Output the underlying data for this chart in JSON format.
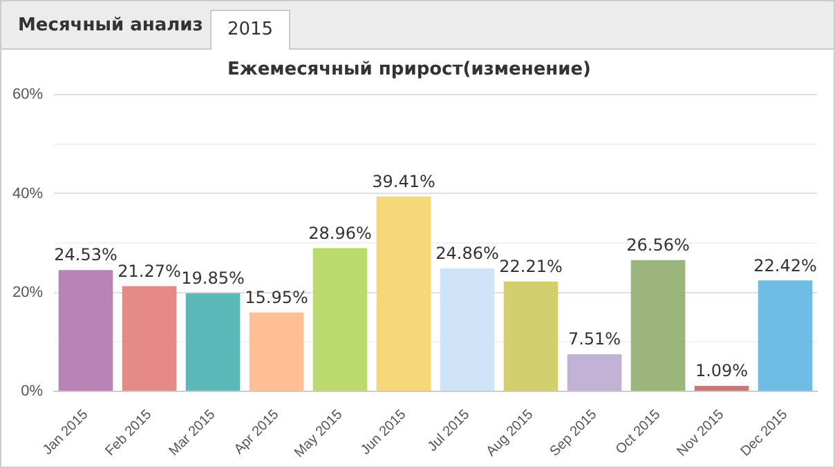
{
  "chart_data": {
    "type": "bar",
    "title": "Ежемесячный прирост(изменение)",
    "annotations": [
      "Месячный анализ",
      "2015"
    ],
    "categories": [
      "Jan 2015",
      "Feb 2015",
      "Mar 2015",
      "Apr 2015",
      "May 2015",
      "Jun 2015",
      "Jul 2015",
      "Aug 2015",
      "Sep 2015",
      "Oct 2015",
      "Nov 2015",
      "Dec 2015"
    ],
    "values": [
      24.53,
      21.27,
      19.85,
      15.95,
      28.96,
      39.41,
      24.86,
      22.21,
      7.51,
      26.56,
      1.09,
      22.42
    ],
    "colors": [
      "#b784b5",
      "#e58a87",
      "#5bb8b8",
      "#fdbf93",
      "#badb6b",
      "#f6d878",
      "#cfe4f7",
      "#d3cf6c",
      "#c3b0d5",
      "#9bb57c",
      "#c87a78",
      "#6ebde6"
    ],
    "value_labels": [
      "24.53%",
      "21.27%",
      "19.85%",
      "15.95%",
      "28.96%",
      "39.41%",
      "24.86%",
      "22.21%",
      "7.51%",
      "26.56%",
      "1.09%",
      "22.42%"
    ],
    "ylim": [
      0,
      60
    ],
    "yticks": [
      {
        "value": 0,
        "label": "0%"
      },
      {
        "value": 10,
        "label": null
      },
      {
        "value": 20,
        "label": "20%"
      },
      {
        "value": 30,
        "label": null
      },
      {
        "value": 40,
        "label": "40%"
      },
      {
        "value": 50,
        "label": null
      },
      {
        "value": 60,
        "label": "60%"
      }
    ],
    "grid": "y",
    "legend": false
  }
}
